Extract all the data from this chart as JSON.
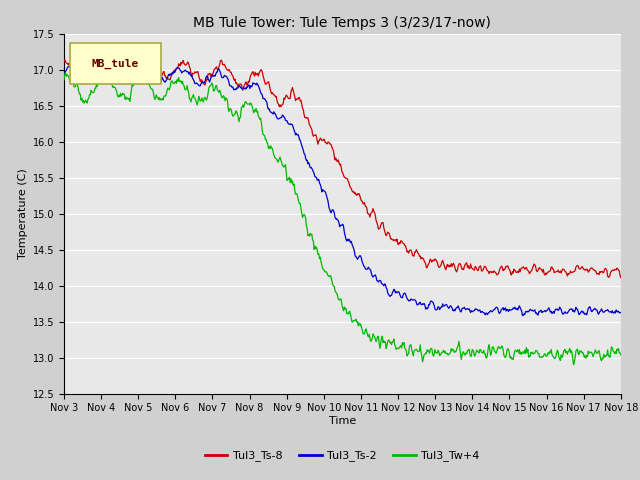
{
  "title": "MB Tule Tower: Tule Temps 3 (3/23/17-now)",
  "xlabel": "Time",
  "ylabel": "Temperature (C)",
  "ylim": [
    12.5,
    17.5
  ],
  "yticks": [
    12.5,
    13.0,
    13.5,
    14.0,
    14.5,
    15.0,
    15.5,
    16.0,
    16.5,
    17.0,
    17.5
  ],
  "xtick_labels": [
    "Nov 3",
    "Nov 4",
    "Nov 5",
    "Nov 6",
    "Nov 7",
    "Nov 8",
    "Nov 9",
    "Nov 10",
    "Nov 11",
    "Nov 12",
    "Nov 13",
    "Nov 14",
    "Nov 15",
    "Nov 16",
    "Nov 17",
    "Nov 18"
  ],
  "legend_label": "MB_tule",
  "series_labels": [
    "Tul3_Ts-8",
    "Tul3_Ts-2",
    "Tul3_Tw+4"
  ],
  "series_colors": [
    "#cc0000",
    "#0000cc",
    "#00bb00"
  ],
  "bg_color": "#e8e8e8",
  "grid_color": "#ffffff",
  "title_fontsize": 10,
  "axis_fontsize": 8,
  "tick_fontsize": 7,
  "legend_box_color": "#ffffcc",
  "legend_box_edge": "#aaa844"
}
